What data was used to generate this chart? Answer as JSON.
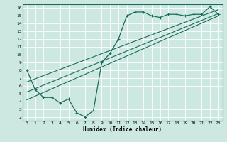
{
  "title": "",
  "xlabel": "Humidex (Indice chaleur)",
  "background_color": "#cce8e0",
  "grid_color": "#b0d8d0",
  "line_color": "#1a6b5e",
  "xlim": [
    -0.5,
    23.5
  ],
  "ylim": [
    1.5,
    16.5
  ],
  "curve_x": [
    0,
    1,
    2,
    3,
    4,
    5,
    6,
    7,
    8,
    9,
    10,
    11,
    12,
    13,
    14,
    15,
    16,
    17,
    18,
    19,
    20,
    21,
    22,
    23
  ],
  "curve_y": [
    8.0,
    5.5,
    4.5,
    4.5,
    3.8,
    4.3,
    2.5,
    2.0,
    2.8,
    9.0,
    10.2,
    12.0,
    15.0,
    15.5,
    15.5,
    15.0,
    14.8,
    15.2,
    15.2,
    15.0,
    15.2,
    15.2,
    16.2,
    15.2
  ],
  "line1_x": [
    0,
    23
  ],
  "line1_y": [
    4.2,
    15.0
  ],
  "line2_x": [
    0,
    23
  ],
  "line2_y": [
    5.2,
    15.3
  ],
  "line3_x": [
    0,
    23
  ],
  "line3_y": [
    6.5,
    15.8
  ],
  "yticks": [
    2,
    3,
    4,
    5,
    6,
    7,
    8,
    9,
    10,
    11,
    12,
    13,
    14,
    15,
    16
  ],
  "xticks": [
    0,
    1,
    2,
    3,
    4,
    5,
    6,
    7,
    8,
    9,
    10,
    11,
    12,
    13,
    14,
    15,
    16,
    17,
    18,
    19,
    20,
    21,
    22,
    23
  ]
}
